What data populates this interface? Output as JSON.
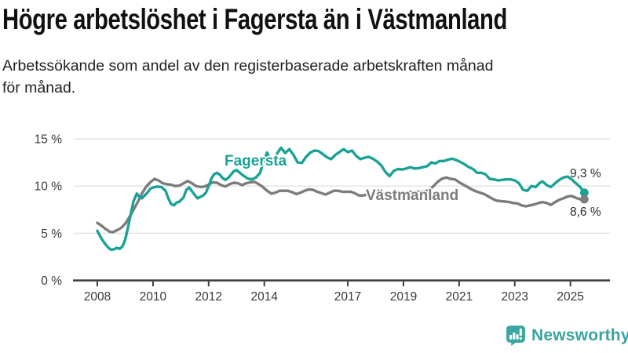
{
  "header": {
    "title": "Högre arbetslöshet i Fagersta än i Västmanland",
    "subtitle_lines": [
      "Arbetssökande som andel av den registerbaserade arbetskraften månad",
      "för månad."
    ]
  },
  "branding": {
    "logo_text": "Newsworthy",
    "logo_color": "#38a59d"
  },
  "colors": {
    "fagersta": "#19a295",
    "vastmanland": "#7c7c7c",
    "grid": "#dddddd",
    "axis": "#3c3c3c",
    "tick_text": "#3a3a3a"
  },
  "chart_data": {
    "type": "line",
    "title": "Högre arbetslöshet i Fagersta än i Västmanland",
    "subtitle": "Arbetssökande som andel av den registerbaserade arbetskraften månad för månad.",
    "unit": "%",
    "grid": "horizontal",
    "legend_position": "inline-labels",
    "x_axis": {
      "ticks": [
        2008,
        2010,
        2012,
        2014,
        2017,
        2019,
        2021,
        2023,
        2025
      ],
      "tick_labels": [
        "2008",
        "2010",
        "2012",
        "2014",
        "2017",
        "2019",
        "2021",
        "2023",
        "2025"
      ],
      "range": [
        2008,
        2025.6
      ]
    },
    "y_axis": {
      "ticks": [
        0,
        5,
        10,
        15
      ],
      "tick_labels": [
        "0 %",
        "5 %",
        "10 %",
        "15 %"
      ],
      "range": [
        0,
        15
      ]
    },
    "series": [
      {
        "name": "Fagersta",
        "color": "#19a295",
        "end_label": "9,3 %",
        "end_value": 9.3,
        "points": [
          [
            2008.0,
            5.25
          ],
          [
            2008.1,
            4.7
          ],
          [
            2008.2,
            4.2
          ],
          [
            2008.3,
            3.8
          ],
          [
            2008.42,
            3.4
          ],
          [
            2008.5,
            3.25
          ],
          [
            2008.6,
            3.3
          ],
          [
            2008.7,
            3.45
          ],
          [
            2008.8,
            3.35
          ],
          [
            2008.9,
            3.6
          ],
          [
            2009.0,
            4.3
          ],
          [
            2009.1,
            5.6
          ],
          [
            2009.2,
            7.0
          ],
          [
            2009.3,
            8.4
          ],
          [
            2009.42,
            9.2
          ],
          [
            2009.5,
            8.9
          ],
          [
            2009.6,
            8.7
          ],
          [
            2009.7,
            9.0
          ],
          [
            2009.8,
            9.3
          ],
          [
            2009.9,
            9.7
          ],
          [
            2010.0,
            9.85
          ],
          [
            2010.15,
            9.95
          ],
          [
            2010.3,
            9.9
          ],
          [
            2010.45,
            9.5
          ],
          [
            2010.55,
            8.7
          ],
          [
            2010.65,
            8.1
          ],
          [
            2010.75,
            7.95
          ],
          [
            2010.85,
            8.25
          ],
          [
            2010.95,
            8.35
          ],
          [
            2011.1,
            8.8
          ],
          [
            2011.2,
            9.6
          ],
          [
            2011.3,
            9.85
          ],
          [
            2011.4,
            9.45
          ],
          [
            2011.5,
            9.05
          ],
          [
            2011.6,
            8.7
          ],
          [
            2011.7,
            8.85
          ],
          [
            2011.8,
            9.0
          ],
          [
            2011.9,
            9.3
          ],
          [
            2012.0,
            10.0
          ],
          [
            2012.1,
            10.8
          ],
          [
            2012.2,
            11.25
          ],
          [
            2012.3,
            11.4
          ],
          [
            2012.4,
            11.2
          ],
          [
            2012.5,
            10.85
          ],
          [
            2012.6,
            10.65
          ],
          [
            2012.7,
            10.85
          ],
          [
            2012.8,
            11.2
          ],
          [
            2012.9,
            11.55
          ],
          [
            2013.0,
            11.7
          ],
          [
            2013.1,
            11.45
          ],
          [
            2013.25,
            11.1
          ],
          [
            2013.4,
            10.8
          ],
          [
            2013.55,
            10.7
          ],
          [
            2013.7,
            10.9
          ],
          [
            2013.85,
            11.4
          ],
          [
            2013.95,
            12.4
          ],
          [
            2014.1,
            13.55
          ],
          [
            2014.25,
            12.55
          ],
          [
            2014.4,
            13.2
          ],
          [
            2014.6,
            14.05
          ],
          [
            2014.75,
            13.5
          ],
          [
            2014.9,
            13.9
          ],
          [
            2015.05,
            13.3
          ],
          [
            2015.2,
            12.5
          ],
          [
            2015.35,
            12.45
          ],
          [
            2015.5,
            13.1
          ],
          [
            2015.65,
            13.55
          ],
          [
            2015.8,
            13.75
          ],
          [
            2015.95,
            13.7
          ],
          [
            2016.1,
            13.4
          ],
          [
            2016.25,
            13.05
          ],
          [
            2016.4,
            12.85
          ],
          [
            2016.55,
            13.3
          ],
          [
            2016.7,
            13.6
          ],
          [
            2016.85,
            13.9
          ],
          [
            2017.0,
            13.6
          ],
          [
            2017.15,
            13.75
          ],
          [
            2017.3,
            13.2
          ],
          [
            2017.45,
            12.85
          ],
          [
            2017.6,
            13.0
          ],
          [
            2017.75,
            13.1
          ],
          [
            2017.9,
            12.9
          ],
          [
            2018.05,
            12.6
          ],
          [
            2018.2,
            12.2
          ],
          [
            2018.35,
            11.5
          ],
          [
            2018.5,
            11.05
          ],
          [
            2018.65,
            11.6
          ],
          [
            2018.8,
            11.8
          ],
          [
            2018.95,
            11.75
          ],
          [
            2019.1,
            11.85
          ],
          [
            2019.25,
            12.0
          ],
          [
            2019.4,
            11.85
          ],
          [
            2019.55,
            11.9
          ],
          [
            2019.7,
            12.0
          ],
          [
            2019.85,
            12.1
          ],
          [
            2020.0,
            12.5
          ],
          [
            2020.15,
            12.4
          ],
          [
            2020.3,
            12.65
          ],
          [
            2020.45,
            12.65
          ],
          [
            2020.6,
            12.8
          ],
          [
            2020.75,
            12.9
          ],
          [
            2020.9,
            12.75
          ],
          [
            2021.05,
            12.55
          ],
          [
            2021.2,
            12.3
          ],
          [
            2021.35,
            12.0
          ],
          [
            2021.5,
            11.8
          ],
          [
            2021.65,
            11.4
          ],
          [
            2021.8,
            11.4
          ],
          [
            2021.95,
            11.25
          ],
          [
            2022.1,
            10.75
          ],
          [
            2022.25,
            10.7
          ],
          [
            2022.4,
            10.6
          ],
          [
            2022.55,
            10.65
          ],
          [
            2022.7,
            10.7
          ],
          [
            2022.85,
            10.7
          ],
          [
            2023.0,
            10.6
          ],
          [
            2023.15,
            10.3
          ],
          [
            2023.3,
            9.6
          ],
          [
            2023.45,
            9.5
          ],
          [
            2023.6,
            10.0
          ],
          [
            2023.75,
            9.9
          ],
          [
            2023.9,
            10.35
          ],
          [
            2024.0,
            10.5
          ],
          [
            2024.15,
            10.1
          ],
          [
            2024.3,
            9.9
          ],
          [
            2024.45,
            10.3
          ],
          [
            2024.6,
            10.65
          ],
          [
            2024.75,
            10.9
          ],
          [
            2024.9,
            11.0
          ],
          [
            2025.05,
            10.7
          ],
          [
            2025.2,
            10.3
          ],
          [
            2025.35,
            9.9
          ],
          [
            2025.5,
            9.3
          ]
        ]
      },
      {
        "name": "Västmanland",
        "color": "#7c7c7c",
        "end_label": "8,6 %",
        "end_value": 8.6,
        "points": [
          [
            2008.0,
            6.1
          ],
          [
            2008.15,
            5.8
          ],
          [
            2008.3,
            5.45
          ],
          [
            2008.45,
            5.15
          ],
          [
            2008.55,
            5.1
          ],
          [
            2008.7,
            5.3
          ],
          [
            2008.85,
            5.55
          ],
          [
            2009.0,
            6.0
          ],
          [
            2009.15,
            6.7
          ],
          [
            2009.3,
            7.5
          ],
          [
            2009.45,
            8.3
          ],
          [
            2009.6,
            9.2
          ],
          [
            2009.75,
            9.9
          ],
          [
            2009.9,
            10.4
          ],
          [
            2010.05,
            10.75
          ],
          [
            2010.2,
            10.6
          ],
          [
            2010.35,
            10.3
          ],
          [
            2010.5,
            10.2
          ],
          [
            2010.65,
            10.15
          ],
          [
            2010.8,
            10.0
          ],
          [
            2010.95,
            10.05
          ],
          [
            2011.1,
            10.3
          ],
          [
            2011.25,
            10.55
          ],
          [
            2011.4,
            10.3
          ],
          [
            2011.55,
            10.0
          ],
          [
            2011.7,
            9.9
          ],
          [
            2011.85,
            9.95
          ],
          [
            2012.0,
            10.15
          ],
          [
            2012.15,
            10.4
          ],
          [
            2012.3,
            10.35
          ],
          [
            2012.45,
            10.1
          ],
          [
            2012.6,
            9.95
          ],
          [
            2012.75,
            10.2
          ],
          [
            2012.9,
            10.35
          ],
          [
            2013.05,
            10.3
          ],
          [
            2013.2,
            10.1
          ],
          [
            2013.35,
            10.3
          ],
          [
            2013.5,
            10.4
          ],
          [
            2013.65,
            10.45
          ],
          [
            2013.8,
            10.2
          ],
          [
            2013.95,
            9.9
          ],
          [
            2014.1,
            9.5
          ],
          [
            2014.25,
            9.2
          ],
          [
            2014.4,
            9.3
          ],
          [
            2014.55,
            9.5
          ],
          [
            2014.7,
            9.5
          ],
          [
            2014.85,
            9.5
          ],
          [
            2015.0,
            9.35
          ],
          [
            2015.15,
            9.15
          ],
          [
            2015.3,
            9.3
          ],
          [
            2015.45,
            9.5
          ],
          [
            2015.6,
            9.65
          ],
          [
            2015.75,
            9.6
          ],
          [
            2015.9,
            9.4
          ],
          [
            2016.05,
            9.25
          ],
          [
            2016.2,
            9.1
          ],
          [
            2016.35,
            9.3
          ],
          [
            2016.5,
            9.5
          ],
          [
            2016.65,
            9.5
          ],
          [
            2016.8,
            9.4
          ],
          [
            2016.95,
            9.4
          ],
          [
            2017.1,
            9.4
          ],
          [
            2017.25,
            9.25
          ],
          [
            2017.4,
            9.0
          ],
          [
            2017.55,
            9.0
          ],
          [
            2017.7,
            9.1
          ],
          [
            2017.85,
            9.2
          ],
          [
            2018.0,
            9.25
          ],
          [
            2018.2,
            9.2
          ],
          [
            2018.4,
            9.25
          ],
          [
            2018.6,
            9.3
          ],
          [
            2018.8,
            9.35
          ],
          [
            2019.0,
            9.3
          ],
          [
            2019.2,
            9.35
          ],
          [
            2019.4,
            9.4
          ],
          [
            2019.6,
            9.4
          ],
          [
            2019.8,
            9.45
          ],
          [
            2019.95,
            9.65
          ],
          [
            2020.1,
            10.05
          ],
          [
            2020.25,
            10.5
          ],
          [
            2020.4,
            10.8
          ],
          [
            2020.55,
            10.9
          ],
          [
            2020.7,
            10.75
          ],
          [
            2020.85,
            10.7
          ],
          [
            2021.0,
            10.4
          ],
          [
            2021.15,
            10.15
          ],
          [
            2021.3,
            9.9
          ],
          [
            2021.45,
            9.65
          ],
          [
            2021.6,
            9.45
          ],
          [
            2021.75,
            9.3
          ],
          [
            2021.9,
            9.15
          ],
          [
            2022.05,
            8.9
          ],
          [
            2022.2,
            8.65
          ],
          [
            2022.35,
            8.45
          ],
          [
            2022.5,
            8.4
          ],
          [
            2022.65,
            8.35
          ],
          [
            2022.8,
            8.3
          ],
          [
            2022.95,
            8.2
          ],
          [
            2023.1,
            8.15
          ],
          [
            2023.25,
            7.95
          ],
          [
            2023.4,
            7.85
          ],
          [
            2023.55,
            7.95
          ],
          [
            2023.7,
            8.05
          ],
          [
            2023.85,
            8.2
          ],
          [
            2024.0,
            8.3
          ],
          [
            2024.15,
            8.2
          ],
          [
            2024.3,
            8.0
          ],
          [
            2024.45,
            8.3
          ],
          [
            2024.6,
            8.55
          ],
          [
            2024.75,
            8.7
          ],
          [
            2024.9,
            8.9
          ],
          [
            2025.05,
            8.95
          ],
          [
            2025.2,
            8.75
          ],
          [
            2025.35,
            8.6
          ],
          [
            2025.5,
            8.6
          ]
        ]
      }
    ]
  }
}
